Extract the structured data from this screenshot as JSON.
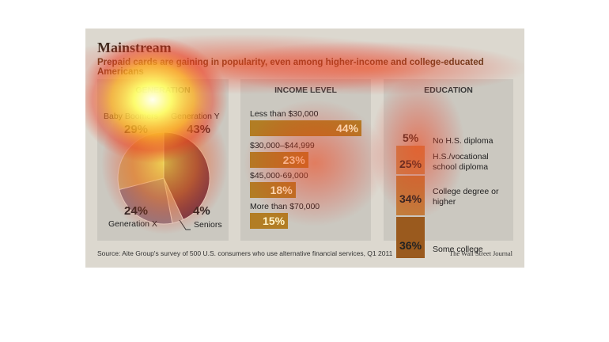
{
  "title": "Mainstream",
  "subtitle": "Prepaid cards are gaining in popularity, even among higher-income and college-educated Americans",
  "source": "Source: Aite Group's survey of 500 U.S. consumers who use alternative financial services, Q1 2011",
  "publisher": "The Wall Street Journal",
  "colors": {
    "orange": "#b27d24",
    "edu_dark": "#9a5a1e",
    "edu_mid": "#c27d3c",
    "heat_core": "#ffff7a",
    "heat_red": "#e8281e"
  },
  "chart_data": [
    {
      "type": "pie",
      "title": "GENERATION",
      "slices": [
        {
          "label": "Baby Boomers",
          "value": 29,
          "value_text": "29%",
          "color": "#c7b37c"
        },
        {
          "label": "Generation Y",
          "value": 43,
          "value_text": "43%",
          "color": "#6b3a4a"
        },
        {
          "label": "Seniors",
          "value": 4,
          "value_text": "4%",
          "color": "#b8a8a0"
        },
        {
          "label": "Generation X",
          "value": 24,
          "value_text": "24%",
          "color": "#8c7f8a"
        }
      ]
    },
    {
      "type": "bar",
      "title": "INCOME LEVEL",
      "categories": [
        "Less than $30,000",
        "$30,000–$44,999",
        "$45,000-69,000",
        "More than $70,000"
      ],
      "values": [
        44,
        23,
        18,
        15
      ],
      "value_texts": [
        "44%",
        "23%",
        "18%",
        "15%"
      ],
      "ylim": [
        0,
        44
      ]
    },
    {
      "type": "bar",
      "title": "EDUCATION",
      "categories": [
        "No H.S. diploma",
        "H.S./vocational school diploma",
        "College degree or higher",
        "Some college"
      ],
      "values": [
        5,
        25,
        34,
        36
      ],
      "value_texts": [
        "5%",
        "25%",
        "34%",
        "36%"
      ]
    }
  ]
}
